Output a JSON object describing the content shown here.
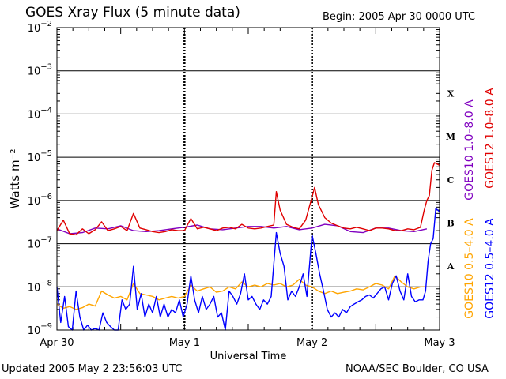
{
  "header": {
    "title": "GOES Xray Flux (5 minute data)",
    "begin": "Begin:  2005 Apr 30 0000 UTC"
  },
  "footer": {
    "updated": "Updated 2005 May  2 23:56:03 UTC",
    "credit": "NOAA/SEC Boulder, CO USA"
  },
  "chart_data": {
    "type": "line",
    "title": "GOES Xray Flux (5 minute data)",
    "xlabel": "Universal Time",
    "ylabel": "Watts m⁻²",
    "y_scale": "log",
    "ylim": [
      1e-09,
      0.01
    ],
    "xlim_days": [
      0,
      3
    ],
    "x_ticks": [
      {
        "value": 0,
        "label": "Apr 30"
      },
      {
        "value": 1,
        "label": "May 1"
      },
      {
        "value": 2,
        "label": "May 2"
      },
      {
        "value": 3,
        "label": "May 3"
      }
    ],
    "y_ticks": [
      {
        "exp": -2,
        "label": "10",
        "sup": "−2"
      },
      {
        "exp": -3,
        "label": "10",
        "sup": "−3"
      },
      {
        "exp": -4,
        "label": "10",
        "sup": "−4"
      },
      {
        "exp": -5,
        "label": "10",
        "sup": "−5"
      },
      {
        "exp": -6,
        "label": "10",
        "sup": "−6"
      },
      {
        "exp": -7,
        "label": "10",
        "sup": "−7"
      },
      {
        "exp": -8,
        "label": "10",
        "sup": "−8"
      },
      {
        "exp": -9,
        "label": "10",
        "sup": "−9"
      }
    ],
    "flare_classes": [
      {
        "label": "X",
        "value": 0.0003
      },
      {
        "label": "M",
        "value": 3e-05
      },
      {
        "label": "C",
        "value": 3e-06
      },
      {
        "label": "B",
        "value": 3e-07
      },
      {
        "label": "A",
        "value": 3e-08
      }
    ],
    "grid": true,
    "legend_position": "right",
    "series": [
      {
        "name": "GOES10 1.0–8.0 A",
        "color": "#8000c0",
        "x": [
          0,
          0.1,
          0.2,
          0.3,
          0.4,
          0.5,
          0.6,
          0.7,
          0.8,
          0.9,
          1.0,
          1.1,
          1.2,
          1.3,
          1.4,
          1.5,
          1.6,
          1.7,
          1.8,
          1.9,
          2.0,
          2.1,
          2.2,
          2.3,
          2.4,
          2.5,
          2.6,
          2.7,
          2.8,
          2.9
        ],
        "y": [
          2.2e-07,
          1.7e-07,
          1.8e-07,
          2.3e-07,
          2.2e-07,
          2.6e-07,
          2e-07,
          1.9e-07,
          2e-07,
          2.2e-07,
          2.4e-07,
          2.7e-07,
          2.2e-07,
          2.1e-07,
          2.3e-07,
          2.5e-07,
          2.5e-07,
          2.3e-07,
          2.5e-07,
          2.1e-07,
          2.3e-07,
          2.8e-07,
          2.6e-07,
          1.9e-07,
          1.8e-07,
          2.3e-07,
          2.3e-07,
          2e-07,
          1.9e-07,
          2.2e-07
        ]
      },
      {
        "name": "GOES12 1.0–8.0 A",
        "color": "#e00000",
        "x": [
          0,
          0.05,
          0.1,
          0.15,
          0.2,
          0.25,
          0.3,
          0.35,
          0.4,
          0.45,
          0.5,
          0.55,
          0.6,
          0.65,
          0.7,
          0.75,
          0.8,
          0.85,
          0.9,
          0.95,
          1.0,
          1.05,
          1.1,
          1.15,
          1.2,
          1.25,
          1.3,
          1.35,
          1.4,
          1.45,
          1.5,
          1.55,
          1.6,
          1.65,
          1.7,
          1.72,
          1.75,
          1.8,
          1.85,
          1.9,
          1.95,
          2.0,
          2.02,
          2.05,
          2.1,
          2.15,
          2.2,
          2.25,
          2.3,
          2.35,
          2.4,
          2.45,
          2.5,
          2.55,
          2.6,
          2.65,
          2.7,
          2.75,
          2.8,
          2.85,
          2.88,
          2.9,
          2.92,
          2.94,
          2.96,
          2.98,
          3.0
        ],
        "y": [
          2e-07,
          3.5e-07,
          1.7e-07,
          1.6e-07,
          2.2e-07,
          1.7e-07,
          2.1e-07,
          3.2e-07,
          2e-07,
          2.2e-07,
          2.5e-07,
          2e-07,
          5e-07,
          2.3e-07,
          2.1e-07,
          1.9e-07,
          1.8e-07,
          1.9e-07,
          2.1e-07,
          2e-07,
          2e-07,
          3.8e-07,
          2.2e-07,
          2.4e-07,
          2.2e-07,
          2e-07,
          2.3e-07,
          2.4e-07,
          2.2e-07,
          2.8e-07,
          2.3e-07,
          2.2e-07,
          2.3e-07,
          2.5e-07,
          2.7e-07,
          1.6e-06,
          6e-07,
          2.8e-07,
          2.4e-07,
          2.2e-07,
          3.5e-07,
          1.2e-06,
          2e-06,
          8e-07,
          4e-07,
          3e-07,
          2.6e-07,
          2.3e-07,
          2.2e-07,
          2.4e-07,
          2.2e-07,
          2e-07,
          2.3e-07,
          2.3e-07,
          2.2e-07,
          2e-07,
          2e-07,
          2.2e-07,
          2.1e-07,
          2.4e-07,
          6e-07,
          1e-06,
          1.3e-06,
          5e-06,
          7.5e-06,
          7e-06,
          6.5e-06
        ]
      },
      {
        "name": "GOES10 0.5–4.0 A",
        "color": "#ffa500",
        "x": [
          0,
          0.05,
          0.1,
          0.15,
          0.2,
          0.25,
          0.3,
          0.35,
          0.4,
          0.45,
          0.5,
          0.55,
          0.6,
          0.65,
          0.7,
          0.75,
          0.8,
          0.85,
          0.9,
          0.95,
          1.0,
          1.05,
          1.1,
          1.15,
          1.2,
          1.25,
          1.3,
          1.35,
          1.4,
          1.45,
          1.5,
          1.55,
          1.6,
          1.65,
          1.7,
          1.75,
          1.8,
          1.85,
          1.9,
          1.95,
          2.0,
          2.05,
          2.1,
          2.15,
          2.2,
          2.25,
          2.3,
          2.35,
          2.4,
          2.45,
          2.5,
          2.55,
          2.6,
          2.65,
          2.7,
          2.75,
          2.8,
          2.85,
          2.9
        ],
        "y": [
          4e-09,
          3.2e-09,
          3.5e-09,
          3e-09,
          3.3e-09,
          4e-09,
          3.6e-09,
          8e-09,
          6.5e-09,
          5.5e-09,
          6e-09,
          5e-09,
          1.2e-08,
          7e-09,
          6.5e-09,
          6e-09,
          5e-09,
          5.5e-09,
          6e-09,
          5.5e-09,
          6e-09,
          1.1e-08,
          8e-09,
          9e-09,
          1e-08,
          7.5e-09,
          8e-09,
          1e-08,
          9e-09,
          1.3e-08,
          1e-08,
          1.1e-08,
          1e-08,
          1.2e-08,
          1.1e-08,
          1.2e-08,
          1e-08,
          1.1e-08,
          1.5e-08,
          1.1e-08,
          1e-08,
          8e-09,
          7e-09,
          8e-09,
          7e-09,
          7.5e-09,
          8e-09,
          9e-09,
          8.5e-09,
          1e-08,
          1.2e-08,
          1.1e-08,
          9e-09,
          1.8e-08,
          1.3e-08,
          1e-08,
          9e-09,
          1e-08,
          1e-08
        ]
      },
      {
        "name": "GOES12 0.5–4.0 A",
        "color": "#0000ff",
        "x": [
          0,
          0.03,
          0.06,
          0.09,
          0.12,
          0.15,
          0.18,
          0.21,
          0.24,
          0.27,
          0.3,
          0.33,
          0.36,
          0.39,
          0.42,
          0.45,
          0.48,
          0.51,
          0.54,
          0.57,
          0.6,
          0.63,
          0.66,
          0.69,
          0.72,
          0.75,
          0.78,
          0.81,
          0.84,
          0.87,
          0.9,
          0.93,
          0.96,
          0.99,
          1.02,
          1.05,
          1.08,
          1.11,
          1.14,
          1.17,
          1.2,
          1.23,
          1.26,
          1.29,
          1.32,
          1.35,
          1.38,
          1.41,
          1.44,
          1.47,
          1.5,
          1.53,
          1.56,
          1.59,
          1.62,
          1.65,
          1.68,
          1.72,
          1.75,
          1.78,
          1.81,
          1.84,
          1.87,
          1.9,
          1.93,
          1.96,
          2.0,
          2.03,
          2.06,
          2.09,
          2.12,
          2.15,
          2.18,
          2.21,
          2.24,
          2.27,
          2.3,
          2.33,
          2.36,
          2.39,
          2.42,
          2.45,
          2.48,
          2.51,
          2.54,
          2.57,
          2.6,
          2.63,
          2.66,
          2.69,
          2.72,
          2.75,
          2.78,
          2.81,
          2.84,
          2.87,
          2.89,
          2.91,
          2.93,
          2.95,
          2.97,
          3.0
        ],
        "y": [
          1e-08,
          1.5e-09,
          6e-09,
          1.2e-09,
          1e-09,
          8e-09,
          2e-09,
          1e-09,
          1.3e-09,
          1e-09,
          1.1e-09,
          1e-09,
          2.5e-09,
          1.5e-09,
          1.2e-09,
          1e-09,
          1e-09,
          5e-09,
          3e-09,
          4e-09,
          3e-08,
          3e-09,
          7e-09,
          2e-09,
          4e-09,
          2.5e-09,
          6e-09,
          2e-09,
          4e-09,
          2e-09,
          3e-09,
          2.5e-09,
          5e-09,
          2e-09,
          4e-09,
          1.8e-08,
          5e-09,
          2.5e-09,
          6e-09,
          3e-09,
          4e-09,
          6e-09,
          2e-09,
          2.5e-09,
          1e-09,
          8e-09,
          6e-09,
          4e-09,
          7e-09,
          2e-08,
          5e-09,
          6e-09,
          4e-09,
          3e-09,
          5e-09,
          4e-09,
          6e-09,
          1.8e-07,
          6e-08,
          3e-08,
          5e-09,
          8e-09,
          6e-09,
          1e-08,
          2e-08,
          6e-09,
          1.6e-07,
          6e-08,
          2e-08,
          8e-09,
          3e-09,
          2e-09,
          2.5e-09,
          2e-09,
          3e-09,
          2.5e-09,
          3.5e-09,
          4e-09,
          4.5e-09,
          5e-09,
          6e-09,
          6.5e-09,
          5.5e-09,
          7e-09,
          9e-09,
          1e-08,
          5e-09,
          1.2e-08,
          1.8e-08,
          8e-09,
          5e-09,
          2e-08,
          6e-09,
          4.5e-09,
          5e-09,
          5e-09,
          8e-09,
          4e-08,
          1e-07,
          1.3e-07,
          6.5e-07,
          5.5e-07
        ]
      }
    ]
  }
}
